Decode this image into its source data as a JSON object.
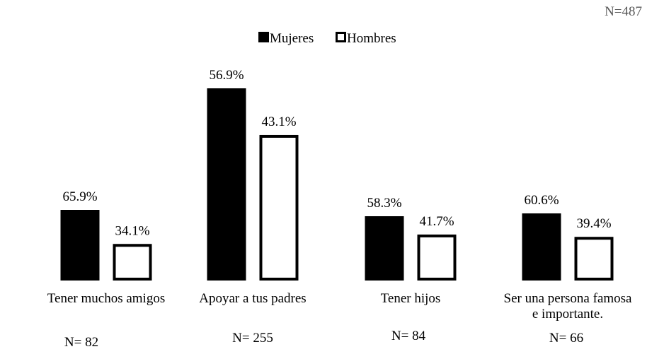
{
  "chart_data": {
    "type": "bar",
    "total_n": "N=487",
    "categories": [
      [
        "Tener muchos amigos"
      ],
      [
        "Apoyar a tus padres"
      ],
      [
        "Tener hijos"
      ],
      [
        "Ser una persona famosa",
        "e importante."
      ]
    ],
    "group_n": [
      "N= 82",
      "N= 255",
      "N= 84",
      "N= 66"
    ],
    "series": [
      {
        "name": "Mujeres",
        "values": [
          65.9,
          56.9,
          58.3,
          60.6
        ],
        "labels": [
          "65.9%",
          "56.9%",
          "58.3%",
          "60.6%"
        ],
        "fill": "#000000"
      },
      {
        "name": "Hombres",
        "values": [
          34.1,
          43.1,
          41.7,
          39.4
        ],
        "labels": [
          "34.1%",
          "43.1%",
          "41.7%",
          "39.4%"
        ],
        "fill": "#ffffff"
      }
    ],
    "legend_position": "top-center",
    "grid": false,
    "axes_visible": false,
    "colors": {
      "mujeres": "#000000",
      "hombres": "#ffffff",
      "outline": "#000000",
      "total_text": "#595959"
    }
  }
}
